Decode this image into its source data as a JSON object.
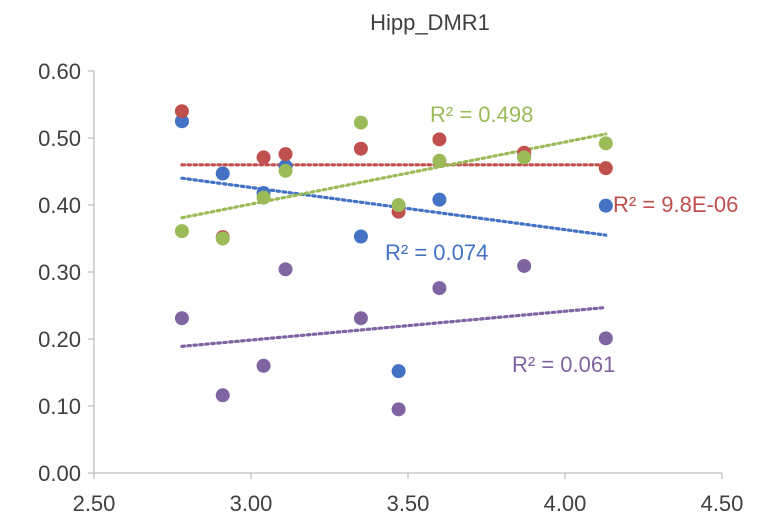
{
  "chart_data": {
    "type": "scatter",
    "title": "Hipp_DMR1",
    "xlabel": "",
    "ylabel": "",
    "xlim": [
      2.5,
      4.5
    ],
    "ylim": [
      0.0,
      0.6
    ],
    "x_ticks": [
      "2.50",
      "3.00",
      "3.50",
      "4.00",
      "4.50"
    ],
    "y_ticks": [
      "0.00",
      "0.10",
      "0.20",
      "0.30",
      "0.40",
      "0.50",
      "0.60"
    ],
    "grid": false,
    "legend": "none",
    "series": [
      {
        "color": "#4472c4",
        "points": [
          {
            "x": 2.78,
            "y": 0.525
          },
          {
            "x": 2.91,
            "y": 0.447
          },
          {
            "x": 3.04,
            "y": 0.418
          },
          {
            "x": 3.11,
            "y": 0.458
          },
          {
            "x": 3.35,
            "y": 0.353
          },
          {
            "x": 3.47,
            "y": 0.152
          },
          {
            "x": 3.6,
            "y": 0.408
          },
          {
            "x": 3.87,
            "y": 0.472
          },
          {
            "x": 4.13,
            "y": 0.399
          }
        ],
        "trendline": {
          "x": [
            2.78,
            4.13
          ],
          "y": [
            0.44,
            0.355
          ]
        },
        "r2_label": "R² = 0.074"
      },
      {
        "color": "#c0504d",
        "points": [
          {
            "x": 2.78,
            "y": 0.54
          },
          {
            "x": 2.91,
            "y": 0.352
          },
          {
            "x": 3.04,
            "y": 0.471
          },
          {
            "x": 3.11,
            "y": 0.476
          },
          {
            "x": 3.35,
            "y": 0.484
          },
          {
            "x": 3.47,
            "y": 0.39
          },
          {
            "x": 3.6,
            "y": 0.498
          },
          {
            "x": 3.87,
            "y": 0.478
          },
          {
            "x": 4.13,
            "y": 0.455
          }
        ],
        "trendline": {
          "x": [
            2.78,
            4.13
          ],
          "y": [
            0.46,
            0.46
          ]
        },
        "r2_label": "R² = 9.8E-06"
      },
      {
        "color": "#9bbb59",
        "points": [
          {
            "x": 2.78,
            "y": 0.361
          },
          {
            "x": 2.91,
            "y": 0.35
          },
          {
            "x": 3.04,
            "y": 0.411
          },
          {
            "x": 3.11,
            "y": 0.451
          },
          {
            "x": 3.35,
            "y": 0.523
          },
          {
            "x": 3.47,
            "y": 0.4
          },
          {
            "x": 3.6,
            "y": 0.466
          },
          {
            "x": 3.87,
            "y": 0.471
          },
          {
            "x": 4.13,
            "y": 0.492
          }
        ],
        "trendline": {
          "x": [
            2.78,
            4.13
          ],
          "y": [
            0.381,
            0.506
          ]
        },
        "r2_label": "R² = 0.498"
      },
      {
        "color": "#8064a2",
        "points": [
          {
            "x": 2.78,
            "y": 0.231
          },
          {
            "x": 2.91,
            "y": 0.116
          },
          {
            "x": 3.04,
            "y": 0.16
          },
          {
            "x": 3.11,
            "y": 0.304
          },
          {
            "x": 3.35,
            "y": 0.231
          },
          {
            "x": 3.47,
            "y": 0.095
          },
          {
            "x": 3.6,
            "y": 0.276
          },
          {
            "x": 3.87,
            "y": 0.309
          },
          {
            "x": 4.13,
            "y": 0.201
          }
        ],
        "trendline": {
          "x": [
            2.78,
            4.13
          ],
          "y": [
            0.189,
            0.247
          ]
        },
        "r2_label": "R² = 0.061"
      }
    ]
  }
}
